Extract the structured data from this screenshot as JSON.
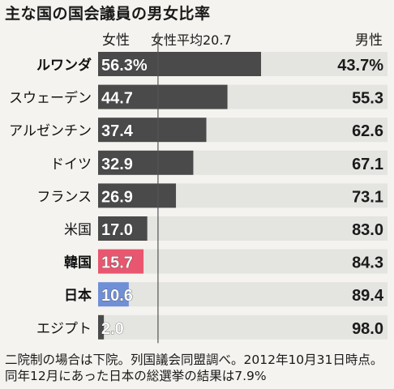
{
  "title": "主な国の国会議員の男女比率",
  "note": "二院制の場合は下院。列国議会同盟調べ。2012年10月31日時点。同年12月にあった日本の総選挙の結果は7.9%",
  "chart_data": {
    "type": "bar",
    "stacked": true,
    "orientation": "horizontal",
    "female_header": "女性",
    "male_header": "男性",
    "reference_label": "女性平均20.7",
    "reference_value": 20.7,
    "xlim": [
      0,
      100
    ],
    "series": [
      {
        "name": "女性",
        "values": [
          56.3,
          44.7,
          37.4,
          32.9,
          26.9,
          17.0,
          15.7,
          10.6,
          2.0
        ]
      },
      {
        "name": "男性",
        "values": [
          43.7,
          55.3,
          62.6,
          67.1,
          73.1,
          83.0,
          84.3,
          89.4,
          98.0
        ]
      }
    ],
    "categories": [
      "ルワンダ",
      "スウェーデン",
      "アルゼンチン",
      "ドイツ",
      "フランス",
      "米国",
      "韓国",
      "日本",
      "エジプト"
    ],
    "female_labels": [
      "56.3%",
      "44.7",
      "37.4",
      "32.9",
      "26.9",
      "17.0",
      "15.7",
      "10.6",
      "2.0"
    ],
    "male_labels": [
      "43.7%",
      "55.3",
      "62.6",
      "67.1",
      "73.1",
      "83.0",
      "84.3",
      "89.4",
      "98.0"
    ],
    "colors": {
      "female_default": "#4a4a4a",
      "female_korea": "#e8566f",
      "female_japan": "#6f8fd6",
      "male": "#e4e4e1",
      "reference_line": "#555555"
    },
    "highlight": {
      "韓国": "female_korea",
      "日本": "female_japan"
    },
    "bold_categories": [
      "ルワンダ",
      "韓国",
      "日本"
    ]
  }
}
